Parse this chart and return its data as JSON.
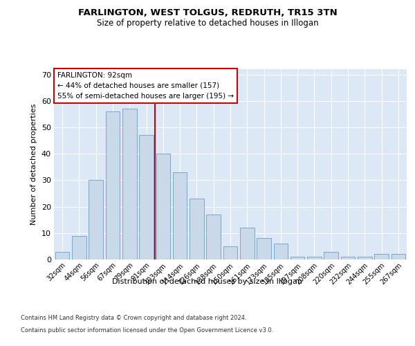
{
  "title": "FARLINGTON, WEST TOLGUS, REDRUTH, TR15 3TN",
  "subtitle": "Size of property relative to detached houses in Illogan",
  "xlabel": "Distribution of detached houses by size in Illogan",
  "ylabel": "Number of detached properties",
  "categories": [
    "32sqm",
    "44sqm",
    "56sqm",
    "67sqm",
    "79sqm",
    "91sqm",
    "103sqm",
    "114sqm",
    "126sqm",
    "138sqm",
    "150sqm",
    "161sqm",
    "173sqm",
    "185sqm",
    "197sqm",
    "208sqm",
    "220sqm",
    "232sqm",
    "244sqm",
    "255sqm",
    "267sqm"
  ],
  "values": [
    3,
    9,
    30,
    56,
    57,
    47,
    40,
    33,
    23,
    17,
    5,
    12,
    8,
    6,
    1,
    1,
    3,
    1,
    1,
    2,
    2
  ],
  "bar_color": "#c9d9ea",
  "bar_edge_color": "#7ba7c9",
  "vline_x": 5.5,
  "vline_color": "#cc0000",
  "annotation_text": "FARLINGTON: 92sqm\n← 44% of detached houses are smaller (157)\n55% of semi-detached houses are larger (195) →",
  "annotation_box_color": "#ffffff",
  "annotation_box_edge": "#cc0000",
  "ylim": [
    0,
    72
  ],
  "yticks": [
    0,
    10,
    20,
    30,
    40,
    50,
    60,
    70
  ],
  "background_color": "#dce8f5",
  "footer_line1": "Contains HM Land Registry data © Crown copyright and database right 2024.",
  "footer_line2": "Contains public sector information licensed under the Open Government Licence v3.0."
}
